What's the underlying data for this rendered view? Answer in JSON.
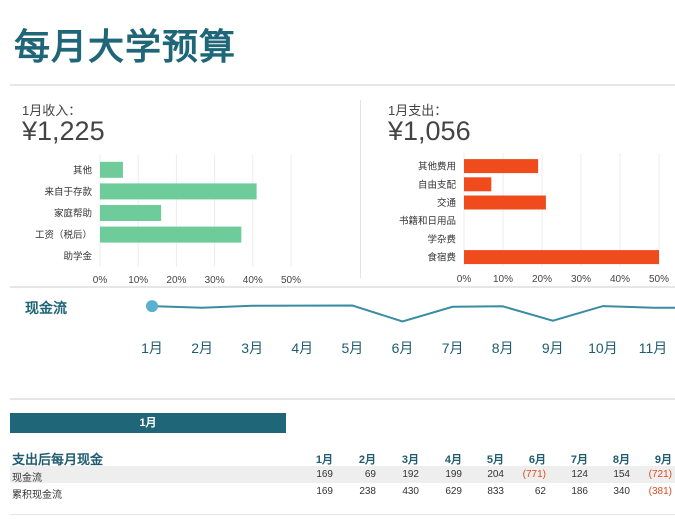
{
  "title": "每月大学预算",
  "income": {
    "label": "1月收入：",
    "amount": "¥1,225",
    "colors": {
      "bar": "#6dcc9a"
    },
    "categories": [
      "其他",
      "来自于存款",
      "家庭帮助",
      "工资（税后）",
      "助学金"
    ],
    "values": [
      6,
      41,
      16,
      37,
      0
    ],
    "xticks": [
      "0%",
      "10%",
      "20%",
      "30%",
      "40%",
      "50%"
    ]
  },
  "expense": {
    "label": "1月支出：",
    "amount": "¥1,056",
    "colors": {
      "bar": "#ef4b1c"
    },
    "categories": [
      "其他费用",
      "自由支配",
      "交通",
      "书籍和日用品",
      "学杂费",
      "食宿费"
    ],
    "values": [
      19,
      7,
      21,
      0,
      0,
      50
    ],
    "xticks": [
      "0%",
      "10%",
      "20%",
      "30%",
      "40%",
      "50%"
    ]
  },
  "cashflow": {
    "label": "现金流",
    "months": [
      "1月",
      "2月",
      "3月",
      "4月",
      "5月",
      "6月",
      "7月",
      "8月",
      "9月",
      "10月",
      "11月"
    ],
    "values": [
      169,
      69,
      192,
      199,
      204,
      -771,
      124,
      154,
      -721,
      169,
      69
    ],
    "colors": {
      "line": "#3a8ca3",
      "marker": "#5bb0cf"
    }
  },
  "month_selector": {
    "label": "1月"
  },
  "table": {
    "header": "支出后每月现金",
    "columns": [
      "1月",
      "2月",
      "3月",
      "4月",
      "5月",
      "6月",
      "7月",
      "8月",
      "9月"
    ],
    "rows": [
      {
        "label": "现金流",
        "values": [
          "169",
          "69",
          "192",
          "199",
          "204",
          "(771)",
          "124",
          "154",
          "(721)"
        ]
      },
      {
        "label": "累积现金流",
        "values": [
          "169",
          "238",
          "430",
          "629",
          "833",
          "62",
          "186",
          "340",
          "(381)"
        ]
      }
    ]
  }
}
